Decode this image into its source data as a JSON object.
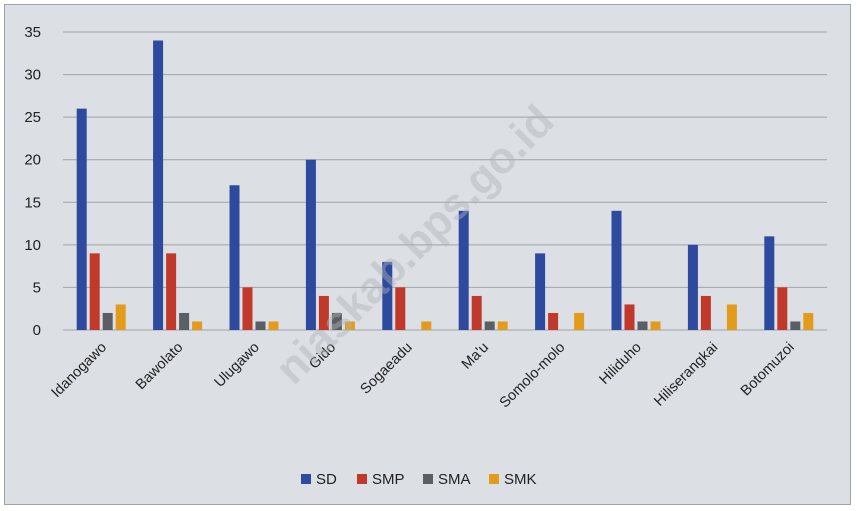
{
  "chart_data": {
    "type": "bar",
    "title": "",
    "xlabel": "",
    "ylabel": "",
    "categories": [
      "Idanogawo",
      "Bawolato",
      "Ulugawo",
      "Gido",
      "Sogaeadu",
      "Ma'u",
      "Somolo-molo",
      "Hiliduho",
      "Hiliserangkai",
      "Botomuzoi"
    ],
    "series": [
      {
        "name": "SD",
        "color": "#2e4a9e",
        "values": [
          26,
          34,
          17,
          20,
          8,
          14,
          9,
          14,
          10,
          11
        ]
      },
      {
        "name": "SMP",
        "color": "#c0392b",
        "values": [
          9,
          9,
          5,
          4,
          5,
          4,
          2,
          3,
          4,
          5
        ]
      },
      {
        "name": "SMA",
        "color": "#5a5f66",
        "values": [
          2,
          2,
          1,
          2,
          0,
          1,
          0,
          1,
          0,
          1
        ]
      },
      {
        "name": "SMK",
        "color": "#e39b1c",
        "values": [
          3,
          1,
          1,
          1,
          1,
          1,
          2,
          1,
          3,
          2
        ]
      }
    ],
    "ylim": [
      0,
      35
    ],
    "yticks": [
      0,
      5,
      10,
      15,
      20,
      25,
      30,
      35
    ],
    "grid": true,
    "legend_position": "bottom"
  },
  "watermark": "niaskab.bps.go.id"
}
